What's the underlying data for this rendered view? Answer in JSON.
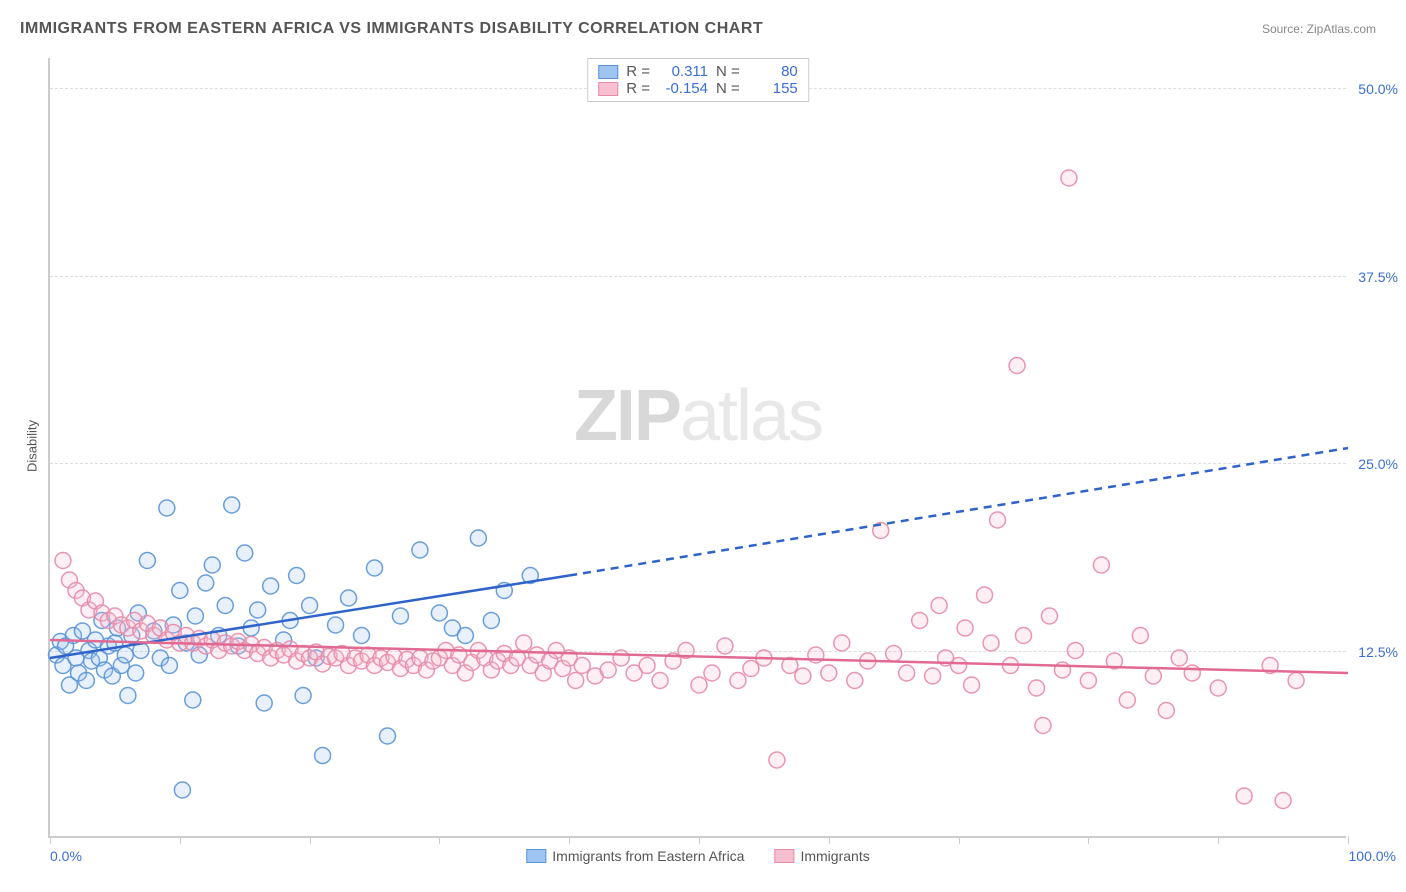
{
  "title": "IMMIGRANTS FROM EASTERN AFRICA VS IMMIGRANTS DISABILITY CORRELATION CHART",
  "source": "Source: ZipAtlas.com",
  "ylabel": "Disability",
  "watermark_a": "ZIP",
  "watermark_b": "atlas",
  "chart": {
    "type": "scatter",
    "xlim": [
      0,
      100
    ],
    "ylim": [
      0,
      52
    ],
    "x_axis_labels": {
      "left": "0.0%",
      "right": "100.0%"
    },
    "y_ticks": [
      12.5,
      25.0,
      37.5,
      50.0
    ],
    "y_tick_labels": [
      "12.5%",
      "25.0%",
      "37.5%",
      "50.0%"
    ],
    "x_minor_ticks": [
      0,
      10,
      20,
      30,
      40,
      50,
      60,
      70,
      80,
      90,
      100
    ],
    "marker_radius": 8,
    "background_color": "#ffffff",
    "grid_color": "#dddddd",
    "axis_color": "#cccccc",
    "tick_label_color": "#3b6fd6",
    "series": [
      {
        "key": "eastern_africa",
        "label": "Immigrants from Eastern Africa",
        "color_fill": "#9ec4ef",
        "color_stroke": "#5a94d8",
        "R": "0.311",
        "N": "80",
        "trend": {
          "solid_from": [
            0,
            12.0
          ],
          "solid_to": [
            40,
            17.5
          ],
          "dash_to": [
            100,
            26.0
          ],
          "color": "#2f63c9",
          "width": 2.5
        },
        "points": [
          [
            0.5,
            12.2
          ],
          [
            0.8,
            13.1
          ],
          [
            1.0,
            11.5
          ],
          [
            1.2,
            12.8
          ],
          [
            1.5,
            10.2
          ],
          [
            1.8,
            13.5
          ],
          [
            2.0,
            12.0
          ],
          [
            2.2,
            11.0
          ],
          [
            2.5,
            13.8
          ],
          [
            2.8,
            10.5
          ],
          [
            3.0,
            12.5
          ],
          [
            3.2,
            11.8
          ],
          [
            3.5,
            13.2
          ],
          [
            3.8,
            12.0
          ],
          [
            4.0,
            14.5
          ],
          [
            4.2,
            11.2
          ],
          [
            4.5,
            12.8
          ],
          [
            4.8,
            10.8
          ],
          [
            5.0,
            13.0
          ],
          [
            5.2,
            14.0
          ],
          [
            5.5,
            11.5
          ],
          [
            5.8,
            12.2
          ],
          [
            6.0,
            9.5
          ],
          [
            6.3,
            13.5
          ],
          [
            6.6,
            11.0
          ],
          [
            6.8,
            15.0
          ],
          [
            7.0,
            12.5
          ],
          [
            7.5,
            18.5
          ],
          [
            8.0,
            13.8
          ],
          [
            8.5,
            12.0
          ],
          [
            9.0,
            22.0
          ],
          [
            9.2,
            11.5
          ],
          [
            9.5,
            14.2
          ],
          [
            10.0,
            16.5
          ],
          [
            10.2,
            3.2
          ],
          [
            10.5,
            13.0
          ],
          [
            11.0,
            9.2
          ],
          [
            11.2,
            14.8
          ],
          [
            11.5,
            12.2
          ],
          [
            12.0,
            17.0
          ],
          [
            12.5,
            18.2
          ],
          [
            13.0,
            13.5
          ],
          [
            13.5,
            15.5
          ],
          [
            14.0,
            22.2
          ],
          [
            14.5,
            12.8
          ],
          [
            15.0,
            19.0
          ],
          [
            15.5,
            14.0
          ],
          [
            16.0,
            15.2
          ],
          [
            16.5,
            9.0
          ],
          [
            17.0,
            16.8
          ],
          [
            18.0,
            13.2
          ],
          [
            18.5,
            14.5
          ],
          [
            19.0,
            17.5
          ],
          [
            19.5,
            9.5
          ],
          [
            20.0,
            15.5
          ],
          [
            20.5,
            12.0
          ],
          [
            21.0,
            5.5
          ],
          [
            22.0,
            14.2
          ],
          [
            23.0,
            16.0
          ],
          [
            24.0,
            13.5
          ],
          [
            25.0,
            18.0
          ],
          [
            26.0,
            6.8
          ],
          [
            27.0,
            14.8
          ],
          [
            28.5,
            19.2
          ],
          [
            30.0,
            15.0
          ],
          [
            31.0,
            14.0
          ],
          [
            32.0,
            13.5
          ],
          [
            33.0,
            20.0
          ],
          [
            34.0,
            14.5
          ],
          [
            35.0,
            16.5
          ],
          [
            37.0,
            17.5
          ]
        ]
      },
      {
        "key": "immigrants",
        "label": "Immigrants",
        "color_fill": "#f6c0d0",
        "color_stroke": "#e88aa8",
        "R": "-0.154",
        "N": "155",
        "trend": {
          "solid_from": [
            0,
            13.2
          ],
          "solid_to": [
            100,
            11.0
          ],
          "dash_to": null,
          "color": "#e16a92",
          "width": 2.5
        },
        "points": [
          [
            1.0,
            18.5
          ],
          [
            1.5,
            17.2
          ],
          [
            2.0,
            16.5
          ],
          [
            2.5,
            16.0
          ],
          [
            3.0,
            15.2
          ],
          [
            3.5,
            15.8
          ],
          [
            4.0,
            15.0
          ],
          [
            4.5,
            14.5
          ],
          [
            5.0,
            14.8
          ],
          [
            5.5,
            14.2
          ],
          [
            6.0,
            14.0
          ],
          [
            6.5,
            14.5
          ],
          [
            7.0,
            13.8
          ],
          [
            7.5,
            14.3
          ],
          [
            8.0,
            13.5
          ],
          [
            8.5,
            14.0
          ],
          [
            9.0,
            13.2
          ],
          [
            9.5,
            13.7
          ],
          [
            10.0,
            13.0
          ],
          [
            10.5,
            13.5
          ],
          [
            11.0,
            13.0
          ],
          [
            11.5,
            13.3
          ],
          [
            12.0,
            12.8
          ],
          [
            12.5,
            13.2
          ],
          [
            13.0,
            12.5
          ],
          [
            13.5,
            13.0
          ],
          [
            14.0,
            12.8
          ],
          [
            14.5,
            13.1
          ],
          [
            15.0,
            12.5
          ],
          [
            15.5,
            12.9
          ],
          [
            16.0,
            12.3
          ],
          [
            16.5,
            12.7
          ],
          [
            17.0,
            12.0
          ],
          [
            17.5,
            12.5
          ],
          [
            18.0,
            12.2
          ],
          [
            18.5,
            12.6
          ],
          [
            19.0,
            11.8
          ],
          [
            19.5,
            12.3
          ],
          [
            20.0,
            12.0
          ],
          [
            20.5,
            12.4
          ],
          [
            21.0,
            11.6
          ],
          [
            21.5,
            12.1
          ],
          [
            22.0,
            12.0
          ],
          [
            22.5,
            12.3
          ],
          [
            23.0,
            11.5
          ],
          [
            23.5,
            12.0
          ],
          [
            24.0,
            11.8
          ],
          [
            24.5,
            12.2
          ],
          [
            25.0,
            11.5
          ],
          [
            25.5,
            12.0
          ],
          [
            26.0,
            11.7
          ],
          [
            26.5,
            12.1
          ],
          [
            27.0,
            11.3
          ],
          [
            27.5,
            11.9
          ],
          [
            28.0,
            11.5
          ],
          [
            28.5,
            12.0
          ],
          [
            29.0,
            11.2
          ],
          [
            29.5,
            11.8
          ],
          [
            30.0,
            12.0
          ],
          [
            30.5,
            12.5
          ],
          [
            31.0,
            11.5
          ],
          [
            31.5,
            12.2
          ],
          [
            32.0,
            11.0
          ],
          [
            32.5,
            11.7
          ],
          [
            33.0,
            12.5
          ],
          [
            33.5,
            12.0
          ],
          [
            34.0,
            11.2
          ],
          [
            34.5,
            11.8
          ],
          [
            35.0,
            12.3
          ],
          [
            35.5,
            11.5
          ],
          [
            36.0,
            12.0
          ],
          [
            36.5,
            13.0
          ],
          [
            37.0,
            11.5
          ],
          [
            37.5,
            12.2
          ],
          [
            38.0,
            11.0
          ],
          [
            38.5,
            11.8
          ],
          [
            39.0,
            12.5
          ],
          [
            39.5,
            11.3
          ],
          [
            40.0,
            12.0
          ],
          [
            40.5,
            10.5
          ],
          [
            41.0,
            11.5
          ],
          [
            42.0,
            10.8
          ],
          [
            43.0,
            11.2
          ],
          [
            44.0,
            12.0
          ],
          [
            45.0,
            11.0
          ],
          [
            46.0,
            11.5
          ],
          [
            47.0,
            10.5
          ],
          [
            48.0,
            11.8
          ],
          [
            49.0,
            12.5
          ],
          [
            50.0,
            10.2
          ],
          [
            51.0,
            11.0
          ],
          [
            52.0,
            12.8
          ],
          [
            53.0,
            10.5
          ],
          [
            54.0,
            11.3
          ],
          [
            55.0,
            12.0
          ],
          [
            56.0,
            5.2
          ],
          [
            57.0,
            11.5
          ],
          [
            58.0,
            10.8
          ],
          [
            59.0,
            12.2
          ],
          [
            60.0,
            11.0
          ],
          [
            61.0,
            13.0
          ],
          [
            62.0,
            10.5
          ],
          [
            63.0,
            11.8
          ],
          [
            64.0,
            20.5
          ],
          [
            65.0,
            12.3
          ],
          [
            66.0,
            11.0
          ],
          [
            67.0,
            14.5
          ],
          [
            68.0,
            10.8
          ],
          [
            68.5,
            15.5
          ],
          [
            69.0,
            12.0
          ],
          [
            70.0,
            11.5
          ],
          [
            70.5,
            14.0
          ],
          [
            71.0,
            10.2
          ],
          [
            72.0,
            16.2
          ],
          [
            72.5,
            13.0
          ],
          [
            73.0,
            21.2
          ],
          [
            74.0,
            11.5
          ],
          [
            74.5,
            31.5
          ],
          [
            75.0,
            13.5
          ],
          [
            76.0,
            10.0
          ],
          [
            76.5,
            7.5
          ],
          [
            77.0,
            14.8
          ],
          [
            78.0,
            11.2
          ],
          [
            78.5,
            44.0
          ],
          [
            79.0,
            12.5
          ],
          [
            80.0,
            10.5
          ],
          [
            81.0,
            18.2
          ],
          [
            82.0,
            11.8
          ],
          [
            83.0,
            9.2
          ],
          [
            84.0,
            13.5
          ],
          [
            85.0,
            10.8
          ],
          [
            86.0,
            8.5
          ],
          [
            87.0,
            12.0
          ],
          [
            88.0,
            11.0
          ],
          [
            90.0,
            10.0
          ],
          [
            92.0,
            2.8
          ],
          [
            94.0,
            11.5
          ],
          [
            95.0,
            2.5
          ],
          [
            96.0,
            10.5
          ]
        ]
      }
    ]
  },
  "legend_stats_labels": {
    "R": "R =",
    "N": "N ="
  },
  "bottom_legend": {
    "label1": "Immigrants from Eastern Africa",
    "label2": "Immigrants"
  }
}
